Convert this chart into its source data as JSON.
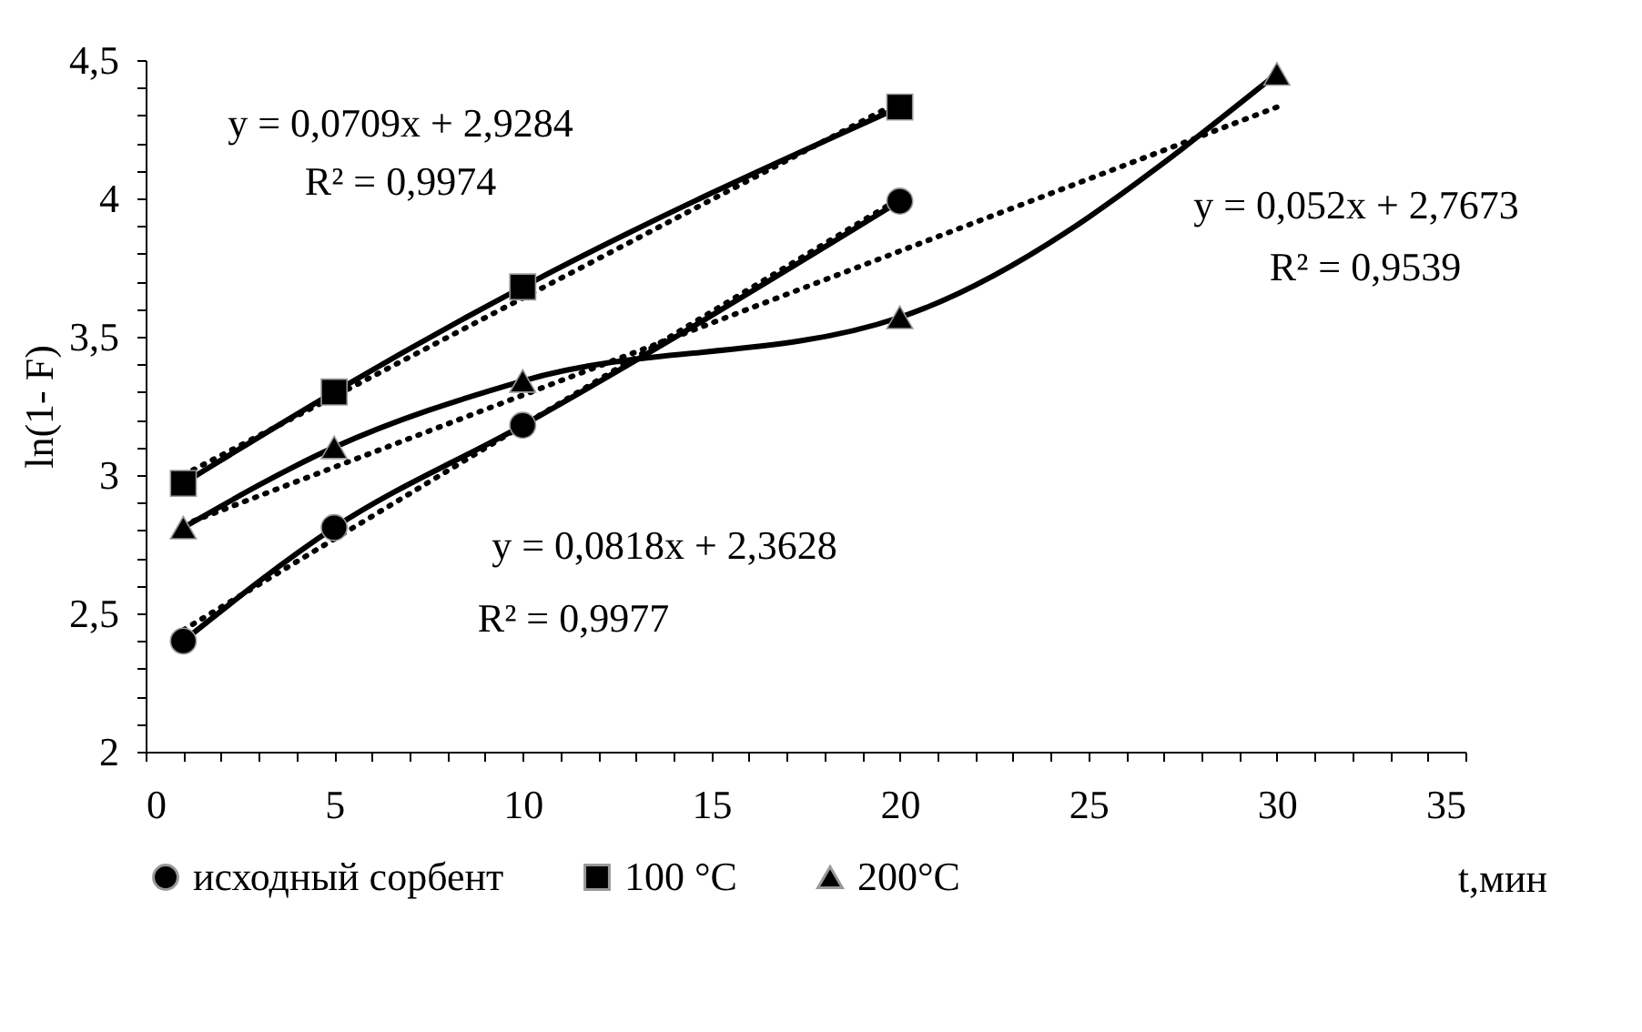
{
  "chart_data": {
    "type": "line",
    "xlabel": "t,мин",
    "ylabel": "ln(1- F)",
    "xlim": [
      0,
      35
    ],
    "ylim": [
      2,
      4.5
    ],
    "xticks": [
      0,
      {
        "value": 1,
        "label": null
      },
      {
        "value": 2,
        "label": null
      },
      {
        "value": 3,
        "label": null
      },
      {
        "value": 4,
        "label": null
      },
      5,
      {
        "value": 6,
        "label": null
      },
      {
        "value": 7,
        "label": null
      },
      {
        "value": 8,
        "label": null
      },
      {
        "value": 9,
        "label": null
      },
      10,
      {
        "value": 11,
        "label": null
      },
      {
        "value": 12,
        "label": null
      },
      {
        "value": 13,
        "label": null
      },
      {
        "value": 14,
        "label": null
      },
      15,
      {
        "value": 16,
        "label": null
      },
      {
        "value": 17,
        "label": null
      },
      {
        "value": 18,
        "label": null
      },
      {
        "value": 19,
        "label": null
      },
      20,
      {
        "value": 21,
        "label": null
      },
      {
        "value": 22,
        "label": null
      },
      {
        "value": 23,
        "label": null
      },
      {
        "value": 24,
        "label": null
      },
      25,
      {
        "value": 26,
        "label": null
      },
      {
        "value": 27,
        "label": null
      },
      {
        "value": 28,
        "label": null
      },
      {
        "value": 29,
        "label": null
      },
      30,
      {
        "value": 31,
        "label": null
      },
      {
        "value": 32,
        "label": null
      },
      {
        "value": 33,
        "label": null
      },
      {
        "value": 34,
        "label": null
      },
      35
    ],
    "yticks": [
      2,
      {
        "value": 2.1,
        "label": null
      },
      {
        "value": 2.2,
        "label": null
      },
      {
        "value": 2.3,
        "label": null
      },
      {
        "value": 2.4,
        "label": null
      },
      {
        "value": 2.5,
        "label": "2,5"
      },
      {
        "value": 2.6,
        "label": null
      },
      {
        "value": 2.7,
        "label": null
      },
      {
        "value": 2.8,
        "label": null
      },
      {
        "value": 2.9,
        "label": null
      },
      3,
      {
        "value": 3.1,
        "label": null
      },
      {
        "value": 3.2,
        "label": null
      },
      {
        "value": 3.3,
        "label": null
      },
      {
        "value": 3.4,
        "label": null
      },
      {
        "value": 3.5,
        "label": "3,5"
      },
      {
        "value": 3.6,
        "label": null
      },
      {
        "value": 3.7,
        "label": null
      },
      {
        "value": 3.8,
        "label": null
      },
      {
        "value": 3.9,
        "label": null
      },
      4,
      {
        "value": 4.1,
        "label": null
      },
      {
        "value": 4.2,
        "label": null
      },
      {
        "value": 4.3,
        "label": null
      },
      {
        "value": 4.4,
        "label": null
      },
      {
        "value": 4.5,
        "label": "4,5"
      }
    ],
    "grid": false,
    "legend": "bottom",
    "line_style": "solid",
    "series": [
      {
        "name": "исходный сорбент",
        "color": "#000000",
        "marker": "circle",
        "x": [
          1,
          5,
          10,
          20
        ],
        "values": [
          2.4,
          2.81,
          3.18,
          3.99
        ]
      },
      {
        "name": "100 °C",
        "color": "#000000",
        "marker": "square",
        "x": [
          1,
          5,
          10,
          20
        ],
        "values": [
          2.97,
          3.3,
          3.68,
          4.33
        ]
      },
      {
        "name": "200°C",
        "color": "#000000",
        "marker": "triangle",
        "x": [
          1,
          5,
          10,
          20,
          30
        ],
        "values": [
          2.81,
          3.1,
          3.34,
          3.57,
          4.45
        ]
      },
      {
        "type": "line",
        "color": "#000000",
        "marker": "none",
        "line_style": "dotted",
        "x": [
          1,
          20
        ],
        "values": [
          2.44,
          4.0
        ]
      },
      {
        "type": "line",
        "color": "#000000",
        "marker": "none",
        "line_style": "dotted",
        "x": [
          1,
          20
        ],
        "values": [
          3.0,
          4.35
        ]
      },
      {
        "type": "line",
        "color": "#000000",
        "marker": "none",
        "line_style": "dotted",
        "x": [
          1,
          30
        ],
        "values": [
          2.82,
          4.33
        ]
      }
    ],
    "annotations": [
      "y = 0,0709x + 2,9284",
      "R² = 0,9974",
      "y = 0,0818x + 2,3628",
      "R² = 0,9977",
      "y = 0,052x + 2,7673",
      "R² = 0,9539"
    ]
  }
}
